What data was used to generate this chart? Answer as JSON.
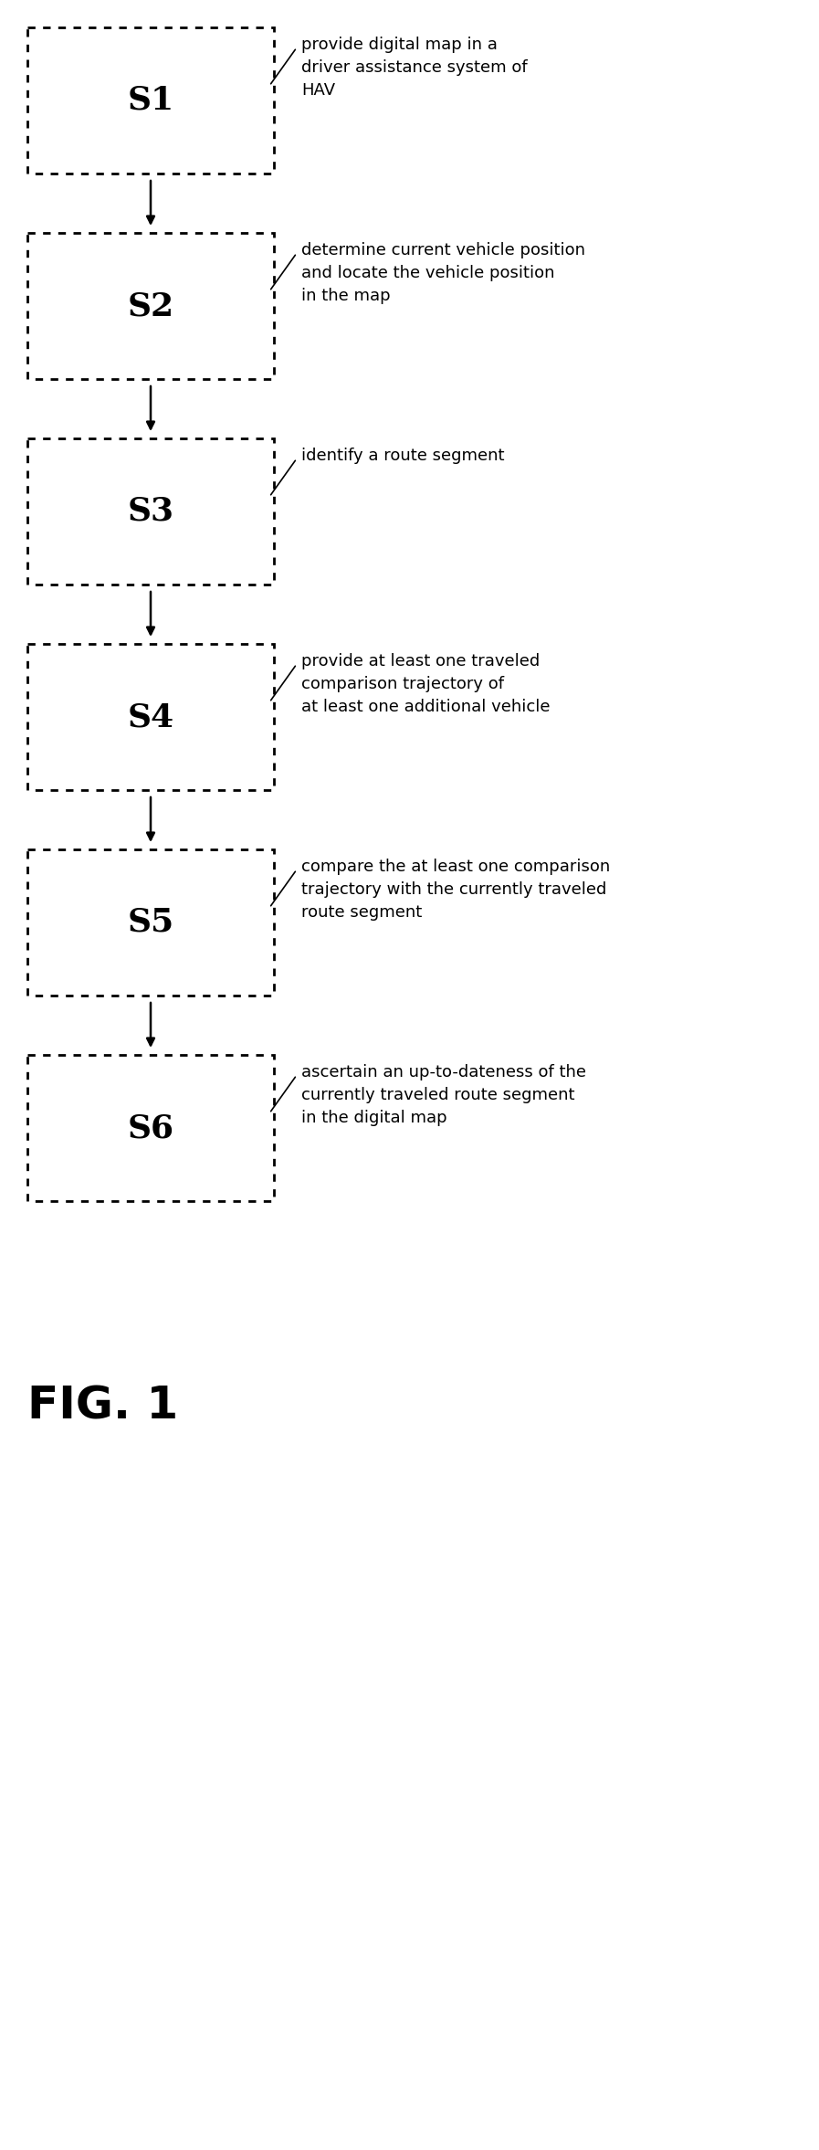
{
  "steps": [
    {
      "label": "S1",
      "text": "provide digital map in a\ndriver assistance system of\nHAV",
      "text_valign": "top"
    },
    {
      "label": "S2",
      "text": "determine current vehicle position\nand locate the vehicle position\nin the map",
      "text_valign": "center"
    },
    {
      "label": "S3",
      "text": "identify a route segment",
      "text_valign": "center"
    },
    {
      "label": "S4",
      "text": "provide at least one traveled\ncomparison trajectory of\nat least one additional vehicle",
      "text_valign": "center"
    },
    {
      "label": "S5",
      "text": "compare the at least one comparison\ntrajectory with the currently traveled\nroute segment",
      "text_valign": "center"
    },
    {
      "label": "S6",
      "text": "ascertain an up-to-dateness of the\ncurrently traveled route segment\nin the digital map",
      "text_valign": "center"
    }
  ],
  "fig_label": "FIG. 1",
  "background_color": "#ffffff",
  "box_edge_color": "#000000",
  "text_color": "#000000",
  "label_fontsize": 26,
  "annot_fontsize": 13,
  "fig_label_fontsize": 36
}
